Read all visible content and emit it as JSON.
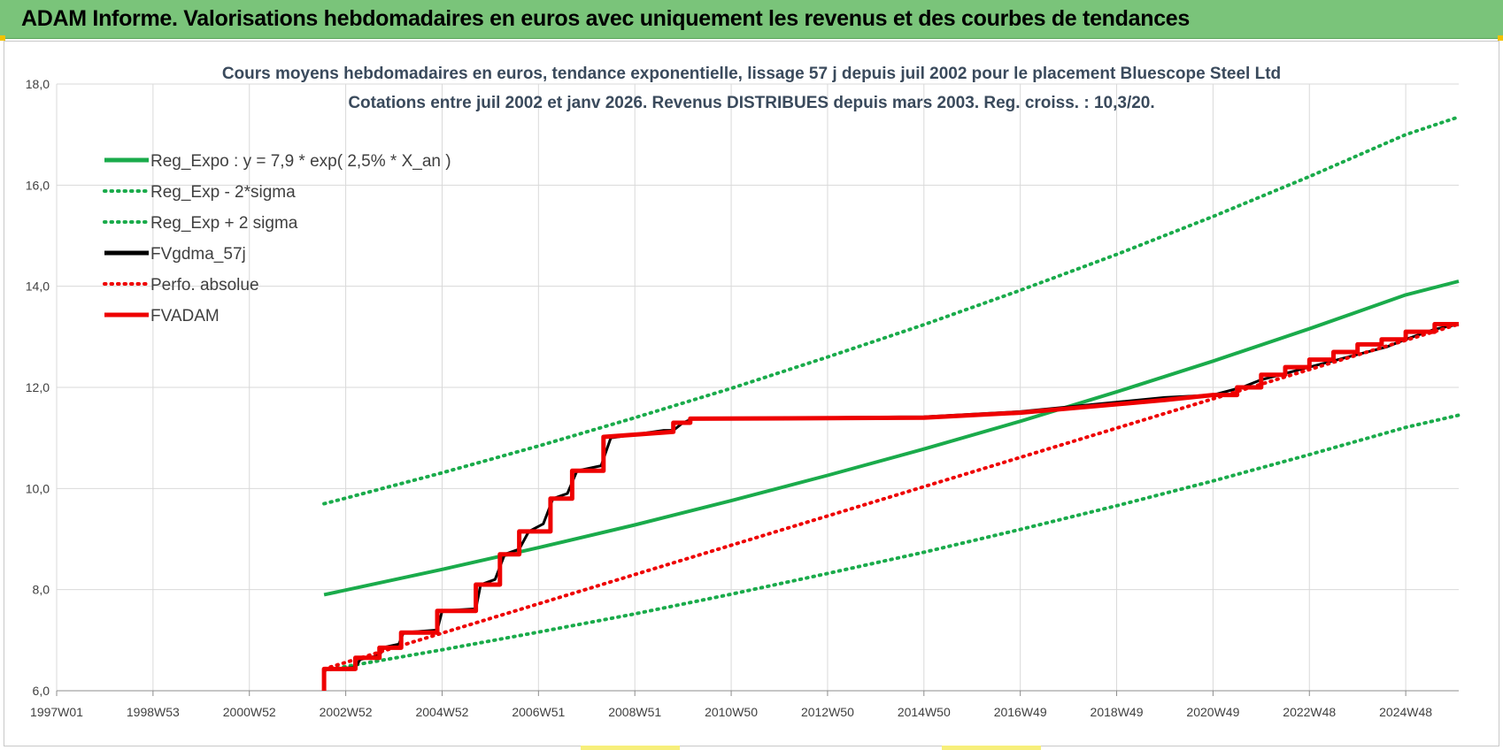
{
  "header": {
    "title": "ADAM Informe. Valorisations hebdomadaires en euros avec uniquement les revenus et des courbes de tendances"
  },
  "chart_data": {
    "type": "line",
    "title_line1": "Cours moyens hebdomadaires en euros, tendance exponentielle, lissage 57 j depuis juil 2002 pour le placement Bluescope Steel Ltd",
    "title_line2": "Cotations entre juil 2002 et janv 2026. Revenus DISTRIBUES depuis mars 2003. Reg. croiss. : 10,3/20.",
    "xlabel": "",
    "ylabel": "",
    "ylim": [
      6,
      18
    ],
    "xlim": [
      1997.0,
      2026.1
    ],
    "y_ticks": [
      "6,0",
      "8,0",
      "10,0",
      "12,0",
      "14,0",
      "16,0",
      "18,0"
    ],
    "x_ticks": [
      "1997W01",
      "1998W53",
      "2000W52",
      "2002W52",
      "2004W52",
      "2006W51",
      "2008W51",
      "2010W50",
      "2012W50",
      "2014W50",
      "2016W49",
      "2018W49",
      "2020W49",
      "2022W48",
      "2024W48"
    ],
    "grid": true,
    "legend_position": "top-left",
    "colors": {
      "green": "#1aab4b",
      "black": "#000000",
      "red": "#ee0000",
      "grid": "#d9d9d9",
      "title_text": "#3a4a5c"
    },
    "series": [
      {
        "name": "Reg_Expo : y = 7,9 * exp( 2,5% *  X_an )",
        "style": "solid",
        "color": "#1aab4b",
        "x": [
          2002.55,
          2003,
          2005,
          2007,
          2009,
          2011,
          2013,
          2015,
          2017,
          2019,
          2021,
          2023,
          2025,
          2026.1
        ],
        "y": [
          7.9,
          7.99,
          8.4,
          8.83,
          9.28,
          9.76,
          10.26,
          10.78,
          11.33,
          11.91,
          12.52,
          13.16,
          13.83,
          14.1
        ]
      },
      {
        "name": "Reg_Exp - 2*sigma",
        "style": "dotted",
        "color": "#1aab4b",
        "x": [
          2002.55,
          2003,
          2005,
          2007,
          2009,
          2011,
          2013,
          2015,
          2017,
          2019,
          2021,
          2023,
          2025,
          2026.1
        ],
        "y": [
          6.4,
          6.48,
          6.81,
          7.16,
          7.52,
          7.91,
          8.32,
          8.74,
          9.19,
          9.66,
          10.15,
          10.67,
          11.21,
          11.45
        ]
      },
      {
        "name": "Reg_Exp + 2 sigma",
        "style": "dotted",
        "color": "#1aab4b",
        "x": [
          2002.55,
          2003,
          2005,
          2007,
          2009,
          2011,
          2013,
          2015,
          2017,
          2019,
          2021,
          2023,
          2025,
          2026.1
        ],
        "y": [
          9.7,
          9.81,
          10.31,
          10.84,
          11.4,
          11.98,
          12.6,
          13.24,
          13.92,
          14.63,
          15.38,
          16.17,
          17.0,
          17.35
        ]
      },
      {
        "name": "FVgdma_57j",
        "style": "solid",
        "color": "#000000",
        "x": [
          2002.6,
          2003.2,
          2003.3,
          2003.7,
          2003.8,
          2004.1,
          2004.2,
          2004.9,
          2005.0,
          2005.7,
          2005.8,
          2006.1,
          2006.3,
          2006.6,
          2006.8,
          2007.1,
          2007.3,
          2007.6,
          2007.8,
          2008.3,
          2008.5,
          2009.6,
          2009.8,
          2010.0,
          2010.2,
          2015.0,
          2017.0,
          2020.0,
          2021.0,
          2021.6,
          2022.0,
          2022.6,
          2023.0,
          2023.6,
          2024.0,
          2024.6,
          2025.0,
          2025.6,
          2026.1
        ],
        "y": [
          6.43,
          6.46,
          6.62,
          6.7,
          6.86,
          6.92,
          7.15,
          7.2,
          7.58,
          7.62,
          8.1,
          8.2,
          8.7,
          8.8,
          9.15,
          9.3,
          9.8,
          9.9,
          10.35,
          10.45,
          11.0,
          11.15,
          11.15,
          11.3,
          11.38,
          11.42,
          11.52,
          11.8,
          11.85,
          12.0,
          12.15,
          12.3,
          12.4,
          12.55,
          12.65,
          12.8,
          12.95,
          13.15,
          13.25
        ]
      },
      {
        "name": "Perfo. absolue",
        "style": "dotted",
        "color": "#ee0000",
        "x": [
          2002.55,
          2026.1
        ],
        "y": [
          6.43,
          13.25
        ]
      },
      {
        "name": "FVADAM",
        "style": "solid",
        "color": "#ee0000",
        "x": [
          2002.55,
          2002.55,
          2003.2,
          2003.2,
          2003.7,
          2003.7,
          2004.15,
          2004.15,
          2004.9,
          2004.9,
          2005.7,
          2005.7,
          2006.2,
          2006.2,
          2006.6,
          2006.6,
          2007.25,
          2007.25,
          2007.7,
          2007.7,
          2008.35,
          2008.35,
          2009.8,
          2009.8,
          2010.15,
          2010.15,
          2015.0,
          2017.0,
          2020.0,
          2021.0,
          2021.5,
          2021.5,
          2022.0,
          2022.0,
          2022.5,
          2022.5,
          2023.0,
          2023.0,
          2023.5,
          2023.5,
          2024.0,
          2024.0,
          2024.5,
          2024.5,
          2025.0,
          2025.0,
          2025.6,
          2025.6,
          2026.1
        ],
        "y": [
          6.0,
          6.43,
          6.43,
          6.65,
          6.65,
          6.85,
          6.85,
          7.15,
          7.15,
          7.58,
          7.58,
          8.1,
          8.1,
          8.7,
          8.7,
          9.15,
          9.15,
          9.8,
          9.8,
          10.35,
          10.35,
          11.02,
          11.12,
          11.3,
          11.3,
          11.38,
          11.4,
          11.5,
          11.75,
          11.85,
          11.85,
          12.0,
          12.0,
          12.25,
          12.25,
          12.4,
          12.4,
          12.55,
          12.55,
          12.7,
          12.7,
          12.85,
          12.85,
          12.95,
          12.95,
          13.1,
          13.1,
          13.25,
          13.25
        ]
      }
    ]
  }
}
